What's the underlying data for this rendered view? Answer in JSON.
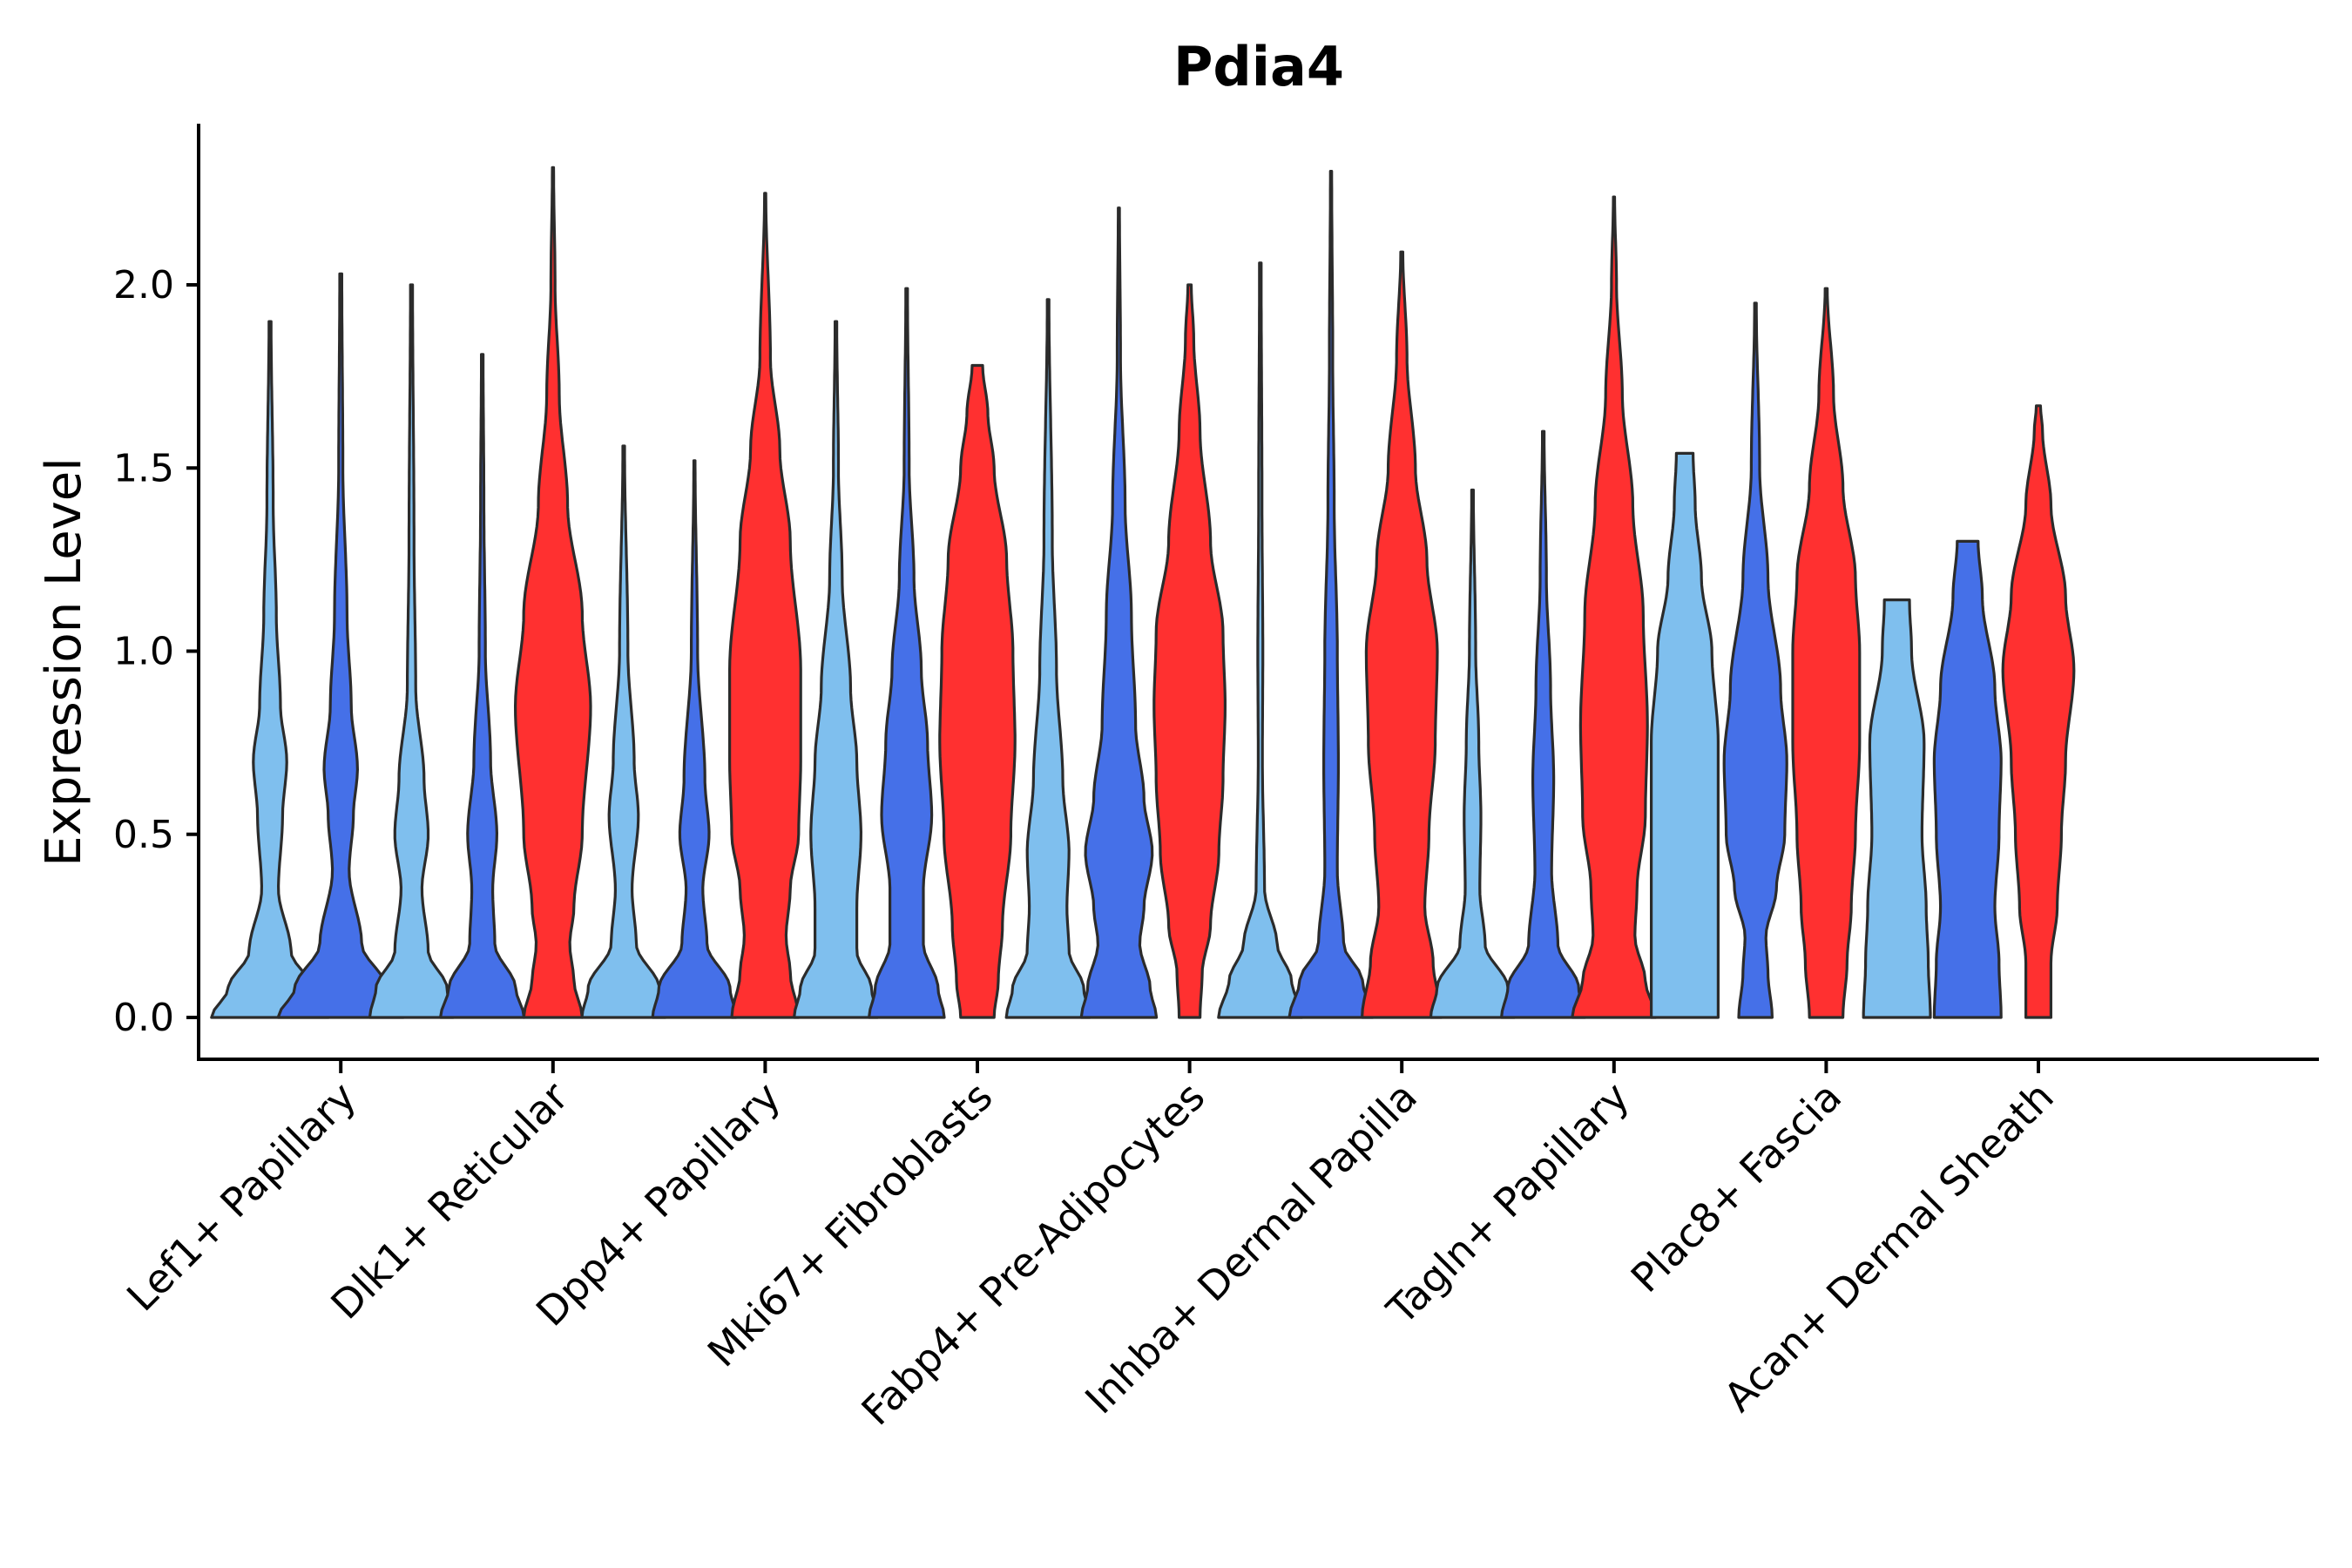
{
  "chart_data": {
    "type": "violin",
    "title": "Pdia4",
    "xlabel": "",
    "ylabel": "Expression Level",
    "ylim": [
      -0.12,
      2.45
    ],
    "yticks": [
      0.0,
      0.5,
      1.0,
      1.5,
      2.0
    ],
    "ytick_labels": [
      "0.0",
      "0.5",
      "1.0",
      "1.5",
      "2.0"
    ],
    "grid": false,
    "legend": "none",
    "group_colors": {
      "light": "#7fbfee",
      "mid": "#4570e8",
      "red": "#ff3030"
    },
    "categories": [
      "Lef1+ Papillary",
      "Dlk1+ Reticular",
      "Dpp4+ Papillary",
      "Mki67+ Fibroblasts",
      "Fabp4+ Pre-Adipocytes",
      "Inhba+ Dermal Papilla",
      "Tagln+ Papillary",
      "Plac8+ Fascia",
      "Acan+ Dermal Sheath"
    ],
    "violins": [
      {
        "category": "Lef1+ Papillary",
        "group": "light",
        "max": 1.9,
        "shape": [
          [
            0,
            0.28
          ],
          [
            0.08,
            0.2
          ],
          [
            0.18,
            0.1
          ],
          [
            0.35,
            0.04
          ],
          [
            0.55,
            0.06
          ],
          [
            0.7,
            0.08
          ],
          [
            0.85,
            0.05
          ],
          [
            1.1,
            0.03
          ],
          [
            1.4,
            0.015
          ],
          [
            1.9,
            0.005
          ]
        ]
      },
      {
        "category": "Lef1+ Papillary",
        "group": "mid",
        "max": 2.03,
        "shape": [
          [
            0,
            0.3
          ],
          [
            0.08,
            0.22
          ],
          [
            0.2,
            0.1
          ],
          [
            0.4,
            0.04
          ],
          [
            0.55,
            0.06
          ],
          [
            0.68,
            0.08
          ],
          [
            0.85,
            0.05
          ],
          [
            1.1,
            0.03
          ],
          [
            1.5,
            0.01
          ],
          [
            2.03,
            0.005
          ]
        ]
      },
      {
        "category": "Dlk1+ Reticular",
        "group": "light",
        "max": 2.0,
        "shape": [
          [
            0,
            0.2
          ],
          [
            0.08,
            0.17
          ],
          [
            0.18,
            0.08
          ],
          [
            0.35,
            0.05
          ],
          [
            0.5,
            0.08
          ],
          [
            0.65,
            0.06
          ],
          [
            0.9,
            0.02
          ],
          [
            1.3,
            0.012
          ],
          [
            2.0,
            0.005
          ]
        ]
      },
      {
        "category": "Dlk1+ Reticular",
        "group": "mid",
        "max": 1.81,
        "shape": [
          [
            0,
            0.2
          ],
          [
            0.08,
            0.16
          ],
          [
            0.2,
            0.06
          ],
          [
            0.35,
            0.05
          ],
          [
            0.5,
            0.07
          ],
          [
            0.7,
            0.04
          ],
          [
            1.0,
            0.015
          ],
          [
            1.4,
            0.008
          ],
          [
            1.81,
            0.004
          ]
        ]
      },
      {
        "category": "Dlk1+ Reticular",
        "group": "red",
        "max": 2.32,
        "shape": [
          [
            0,
            0.14
          ],
          [
            0.1,
            0.1
          ],
          [
            0.2,
            0.08
          ],
          [
            0.3,
            0.1
          ],
          [
            0.5,
            0.14
          ],
          [
            0.85,
            0.18
          ],
          [
            1.1,
            0.14
          ],
          [
            1.4,
            0.07
          ],
          [
            1.7,
            0.03
          ],
          [
            2.0,
            0.01
          ],
          [
            2.32,
            0.003
          ]
        ]
      },
      {
        "category": "Dpp4+ Papillary",
        "group": "light",
        "max": 1.56,
        "shape": [
          [
            0,
            0.2
          ],
          [
            0.08,
            0.17
          ],
          [
            0.2,
            0.06
          ],
          [
            0.35,
            0.04
          ],
          [
            0.55,
            0.07
          ],
          [
            0.7,
            0.05
          ],
          [
            1.0,
            0.02
          ],
          [
            1.56,
            0.004
          ]
        ]
      },
      {
        "category": "Dpp4+ Papillary",
        "group": "mid",
        "max": 1.52,
        "shape": [
          [
            0,
            0.2
          ],
          [
            0.08,
            0.17
          ],
          [
            0.2,
            0.06
          ],
          [
            0.35,
            0.04
          ],
          [
            0.5,
            0.07
          ],
          [
            0.65,
            0.05
          ],
          [
            1.0,
            0.015
          ],
          [
            1.52,
            0.003
          ]
        ]
      },
      {
        "category": "Dpp4+ Papillary",
        "group": "red",
        "max": 2.25,
        "shape": [
          [
            0,
            0.16
          ],
          [
            0.12,
            0.12
          ],
          [
            0.22,
            0.1
          ],
          [
            0.35,
            0.12
          ],
          [
            0.5,
            0.16
          ],
          [
            0.7,
            0.17
          ],
          [
            0.95,
            0.17
          ],
          [
            1.3,
            0.12
          ],
          [
            1.55,
            0.07
          ],
          [
            1.8,
            0.025
          ],
          [
            2.25,
            0.003
          ]
        ]
      },
      {
        "category": "Mki67+ Fibroblasts",
        "group": "light",
        "max": 1.9,
        "shape": [
          [
            0,
            0.2
          ],
          [
            0.08,
            0.17
          ],
          [
            0.18,
            0.1
          ],
          [
            0.3,
            0.1
          ],
          [
            0.5,
            0.12
          ],
          [
            0.7,
            0.1
          ],
          [
            0.9,
            0.07
          ],
          [
            1.2,
            0.03
          ],
          [
            1.5,
            0.012
          ],
          [
            1.9,
            0.004
          ]
        ]
      },
      {
        "category": "Mki67+ Fibroblasts",
        "group": "mid",
        "max": 1.99,
        "shape": [
          [
            0,
            0.18
          ],
          [
            0.08,
            0.15
          ],
          [
            0.2,
            0.08
          ],
          [
            0.35,
            0.08
          ],
          [
            0.55,
            0.12
          ],
          [
            0.75,
            0.1
          ],
          [
            0.95,
            0.07
          ],
          [
            1.2,
            0.035
          ],
          [
            1.5,
            0.012
          ],
          [
            1.99,
            0.004
          ]
        ]
      },
      {
        "category": "Mki67+ Fibroblasts",
        "group": "red",
        "max": 1.78,
        "shape": [
          [
            0,
            0.08
          ],
          [
            0.1,
            0.1
          ],
          [
            0.25,
            0.12
          ],
          [
            0.5,
            0.16
          ],
          [
            0.75,
            0.18
          ],
          [
            1.0,
            0.17
          ],
          [
            1.25,
            0.14
          ],
          [
            1.5,
            0.08
          ],
          [
            1.65,
            0.05
          ],
          [
            1.78,
            0.025
          ]
        ]
      },
      {
        "category": "Fabp4+ Pre-Adipocytes",
        "group": "light",
        "max": 1.96,
        "shape": [
          [
            0,
            0.2
          ],
          [
            0.08,
            0.17
          ],
          [
            0.18,
            0.1
          ],
          [
            0.3,
            0.09
          ],
          [
            0.45,
            0.1
          ],
          [
            0.65,
            0.07
          ],
          [
            0.95,
            0.04
          ],
          [
            1.3,
            0.02
          ],
          [
            1.96,
            0.004
          ]
        ]
      },
      {
        "category": "Fabp4+ Pre-Adipocytes",
        "group": "mid",
        "max": 2.21,
        "shape": [
          [
            0,
            0.18
          ],
          [
            0.08,
            0.15
          ],
          [
            0.2,
            0.1
          ],
          [
            0.3,
            0.12
          ],
          [
            0.45,
            0.16
          ],
          [
            0.6,
            0.12
          ],
          [
            0.8,
            0.08
          ],
          [
            1.1,
            0.06
          ],
          [
            1.4,
            0.03
          ],
          [
            1.8,
            0.008
          ],
          [
            2.21,
            0.003
          ]
        ]
      },
      {
        "category": "Fabp4+ Pre-Adipocytes",
        "group": "red",
        "max": 2.0,
        "shape": [
          [
            0,
            0.05
          ],
          [
            0.12,
            0.06
          ],
          [
            0.25,
            0.1
          ],
          [
            0.45,
            0.14
          ],
          [
            0.65,
            0.16
          ],
          [
            0.85,
            0.17
          ],
          [
            1.05,
            0.16
          ],
          [
            1.3,
            0.1
          ],
          [
            1.6,
            0.05
          ],
          [
            1.85,
            0.02
          ],
          [
            2.0,
            0.008
          ]
        ]
      },
      {
        "category": "Inhba+ Dermal Papilla",
        "group": "light",
        "max": 2.06,
        "shape": [
          [
            0,
            0.2
          ],
          [
            0.1,
            0.15
          ],
          [
            0.2,
            0.08
          ],
          [
            0.35,
            0.02
          ],
          [
            0.7,
            0.01
          ],
          [
            1.0,
            0.012
          ],
          [
            1.4,
            0.008
          ],
          [
            2.06,
            0.004
          ]
        ]
      },
      {
        "category": "Inhba+ Dermal Papilla",
        "group": "mid",
        "max": 2.31,
        "shape": [
          [
            0,
            0.2
          ],
          [
            0.1,
            0.15
          ],
          [
            0.2,
            0.06
          ],
          [
            0.4,
            0.03
          ],
          [
            0.7,
            0.035
          ],
          [
            1.0,
            0.03
          ],
          [
            1.4,
            0.015
          ],
          [
            1.8,
            0.008
          ],
          [
            2.31,
            0.003
          ]
        ]
      },
      {
        "category": "Inhba+ Dermal Papilla",
        "group": "red",
        "max": 2.09,
        "shape": [
          [
            0,
            0.19
          ],
          [
            0.15,
            0.15
          ],
          [
            0.3,
            0.11
          ],
          [
            0.5,
            0.13
          ],
          [
            0.75,
            0.16
          ],
          [
            1.0,
            0.17
          ],
          [
            1.25,
            0.12
          ],
          [
            1.5,
            0.065
          ],
          [
            1.8,
            0.025
          ],
          [
            2.09,
            0.005
          ]
        ]
      },
      {
        "category": "Tagln+ Papillary",
        "group": "light",
        "max": 1.44,
        "shape": [
          [
            0,
            0.2
          ],
          [
            0.08,
            0.17
          ],
          [
            0.2,
            0.06
          ],
          [
            0.35,
            0.035
          ],
          [
            0.55,
            0.04
          ],
          [
            0.75,
            0.03
          ],
          [
            1.0,
            0.015
          ],
          [
            1.44,
            0.004
          ]
        ]
      },
      {
        "category": "Tagln+ Papillary",
        "group": "mid",
        "max": 1.6,
        "shape": [
          [
            0,
            0.2
          ],
          [
            0.08,
            0.17
          ],
          [
            0.2,
            0.07
          ],
          [
            0.4,
            0.04
          ],
          [
            0.65,
            0.05
          ],
          [
            0.9,
            0.035
          ],
          [
            1.2,
            0.015
          ],
          [
            1.6,
            0.004
          ]
        ]
      },
      {
        "category": "Tagln+ Papillary",
        "group": "red",
        "max": 2.24,
        "shape": [
          [
            0,
            0.2
          ],
          [
            0.1,
            0.15
          ],
          [
            0.22,
            0.1
          ],
          [
            0.35,
            0.11
          ],
          [
            0.55,
            0.15
          ],
          [
            0.8,
            0.16
          ],
          [
            1.1,
            0.14
          ],
          [
            1.4,
            0.09
          ],
          [
            1.7,
            0.04
          ],
          [
            2.0,
            0.012
          ],
          [
            2.24,
            0.003
          ]
        ]
      },
      {
        "category": "Plac8+ Fascia",
        "group": "light",
        "max": 1.54,
        "shape": [
          [
            0,
            0.16
          ],
          [
            0.15,
            0.16
          ],
          [
            0.3,
            0.16
          ],
          [
            0.5,
            0.16
          ],
          [
            0.75,
            0.16
          ],
          [
            1.0,
            0.13
          ],
          [
            1.2,
            0.08
          ],
          [
            1.4,
            0.05
          ],
          [
            1.54,
            0.04
          ]
        ]
      },
      {
        "category": "Plac8+ Fascia",
        "group": "mid",
        "max": 1.95,
        "shape": [
          [
            0,
            0.08
          ],
          [
            0.12,
            0.06
          ],
          [
            0.22,
            0.05
          ],
          [
            0.35,
            0.1
          ],
          [
            0.5,
            0.14
          ],
          [
            0.7,
            0.15
          ],
          [
            0.9,
            0.12
          ],
          [
            1.2,
            0.06
          ],
          [
            1.5,
            0.02
          ],
          [
            1.95,
            0.004
          ]
        ]
      },
      {
        "category": "Plac8+ Fascia",
        "group": "red",
        "max": 1.99,
        "shape": [
          [
            0,
            0.08
          ],
          [
            0.15,
            0.1
          ],
          [
            0.3,
            0.12
          ],
          [
            0.5,
            0.14
          ],
          [
            0.75,
            0.16
          ],
          [
            1.0,
            0.16
          ],
          [
            1.2,
            0.14
          ],
          [
            1.45,
            0.08
          ],
          [
            1.7,
            0.035
          ],
          [
            1.99,
            0.005
          ]
        ]
      },
      {
        "category": "Acan+ Dermal Sheath",
        "group": "light",
        "max": 1.14,
        "shape": [
          [
            0,
            0.16
          ],
          [
            0.15,
            0.15
          ],
          [
            0.3,
            0.14
          ],
          [
            0.5,
            0.12
          ],
          [
            0.75,
            0.13
          ],
          [
            1.0,
            0.07
          ],
          [
            1.14,
            0.06
          ]
        ]
      },
      {
        "category": "Acan+ Dermal Sheath",
        "group": "mid",
        "max": 1.3,
        "shape": [
          [
            0,
            0.16
          ],
          [
            0.15,
            0.15
          ],
          [
            0.3,
            0.13
          ],
          [
            0.5,
            0.15
          ],
          [
            0.7,
            0.16
          ],
          [
            0.9,
            0.13
          ],
          [
            1.15,
            0.07
          ],
          [
            1.3,
            0.05
          ]
        ]
      },
      {
        "category": "Acan+ Dermal Sheath",
        "group": "red",
        "max": 1.67,
        "shape": [
          [
            0,
            0.06
          ],
          [
            0.15,
            0.06
          ],
          [
            0.3,
            0.09
          ],
          [
            0.5,
            0.11
          ],
          [
            0.7,
            0.13
          ],
          [
            0.95,
            0.17
          ],
          [
            1.15,
            0.13
          ],
          [
            1.4,
            0.06
          ],
          [
            1.6,
            0.02
          ],
          [
            1.67,
            0.01
          ]
        ]
      }
    ]
  }
}
